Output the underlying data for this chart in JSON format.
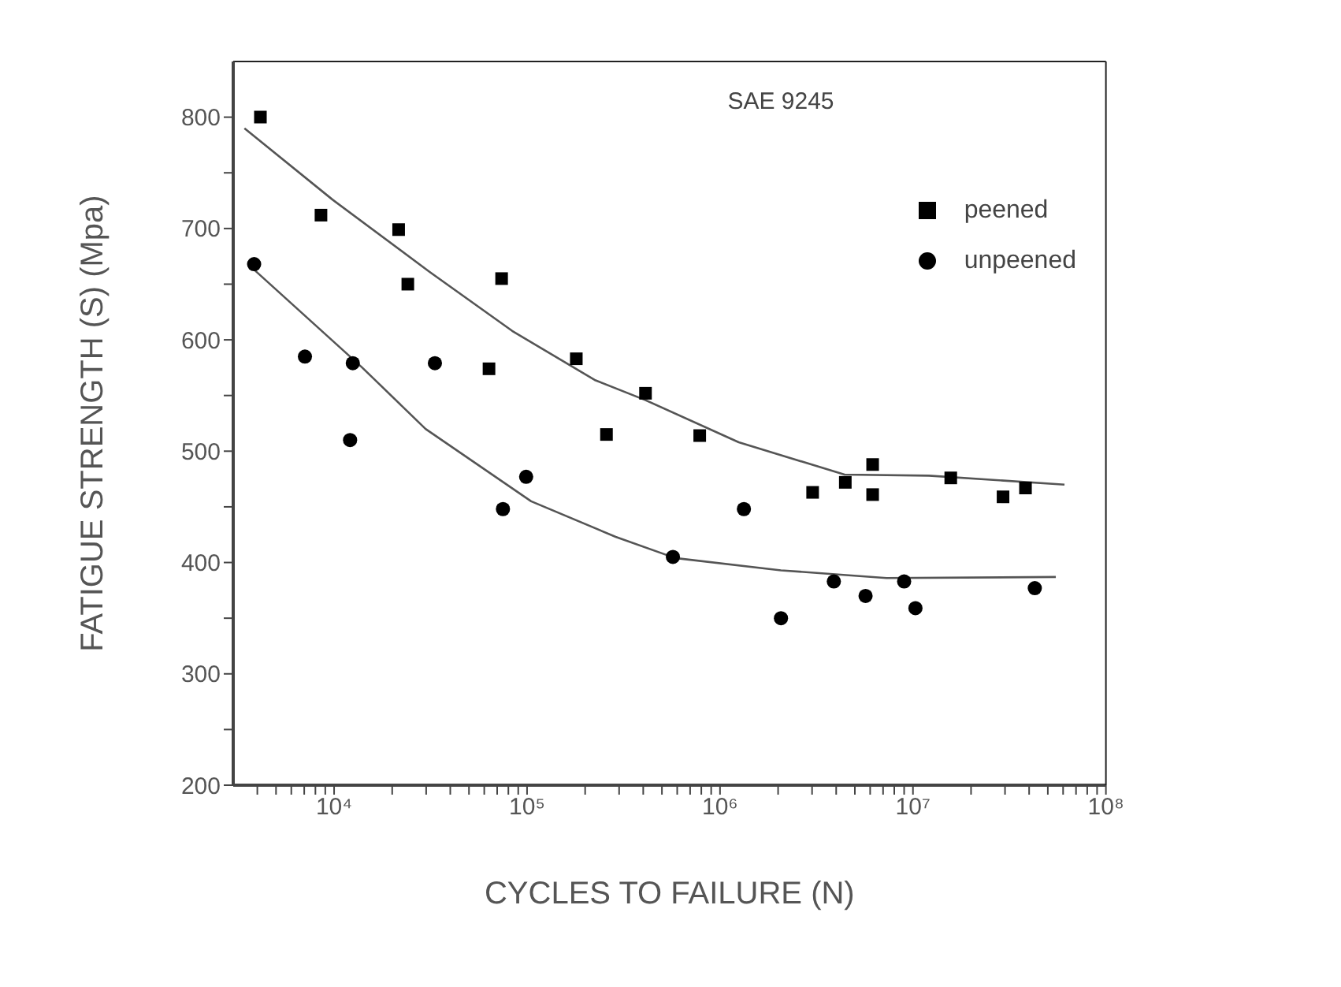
{
  "chart_data": {
    "type": "scatter",
    "title": "SAE 9245",
    "xlabel": "CYCLES TO FAILURE (N)",
    "ylabel": "FATIGUE STRENGTH (S) (Mpa)",
    "log": "x",
    "xlim": [
      3000,
      100000000
    ],
    "xticks": [
      {
        "value": 4000,
        "label": null
      },
      {
        "value": 5000,
        "label": null
      },
      {
        "value": 6000,
        "label": null
      },
      {
        "value": 7000,
        "label": null
      },
      {
        "value": 8000,
        "label": null
      },
      {
        "value": 9000,
        "label": null
      },
      {
        "value": 10000,
        "label": "10⁴"
      },
      {
        "value": 20000,
        "label": null
      },
      {
        "value": 30000,
        "label": null
      },
      {
        "value": 40000,
        "label": null
      },
      {
        "value": 50000,
        "label": null
      },
      {
        "value": 60000,
        "label": null
      },
      {
        "value": 70000,
        "label": null
      },
      {
        "value": 80000,
        "label": null
      },
      {
        "value": 90000,
        "label": null
      },
      {
        "value": 100000,
        "label": "10⁵"
      },
      {
        "value": 200000,
        "label": null
      },
      {
        "value": 300000,
        "label": null
      },
      {
        "value": 400000,
        "label": null
      },
      {
        "value": 500000,
        "label": null
      },
      {
        "value": 600000,
        "label": null
      },
      {
        "value": 700000,
        "label": null
      },
      {
        "value": 800000,
        "label": null
      },
      {
        "value": 900000,
        "label": null
      },
      {
        "value": 1000000,
        "label": "10⁶"
      },
      {
        "value": 2000000,
        "label": null
      },
      {
        "value": 3000000,
        "label": null
      },
      {
        "value": 4000000,
        "label": null
      },
      {
        "value": 5000000,
        "label": null
      },
      {
        "value": 6000000,
        "label": null
      },
      {
        "value": 7000000,
        "label": null
      },
      {
        "value": 8000000,
        "label": null
      },
      {
        "value": 9000000,
        "label": null
      },
      {
        "value": 10000000,
        "label": "10⁷"
      },
      {
        "value": 20000000,
        "label": null
      },
      {
        "value": 30000000,
        "label": null
      },
      {
        "value": 40000000,
        "label": null
      },
      {
        "value": 50000000,
        "label": null
      },
      {
        "value": 60000000,
        "label": null
      },
      {
        "value": 70000000,
        "label": null
      },
      {
        "value": 80000000,
        "label": null
      },
      {
        "value": 90000000,
        "label": null
      },
      {
        "value": 100000000,
        "label": "10⁸"
      }
    ],
    "ylim": [
      200,
      850
    ],
    "yticks": [
      200,
      {
        "value": 250,
        "label": null
      },
      300,
      {
        "value": 350,
        "label": null
      },
      400,
      {
        "value": 450,
        "label": null
      },
      500,
      {
        "value": 550,
        "label": null
      },
      600,
      {
        "value": 650,
        "label": null
      },
      700,
      {
        "value": 750,
        "label": null
      },
      800
    ],
    "grid": false,
    "legend": "top right",
    "series": [
      {
        "name": "peened",
        "marker": "square",
        "color": "#000000",
        "x": [
          4150,
          8550,
          21600,
          24100,
          73800,
          63500,
          180000,
          258000,
          411000,
          785000,
          3020000,
          4460000,
          6180000,
          6180000,
          15700000,
          29300000,
          38300000
        ],
        "values": [
          800,
          712,
          699,
          650,
          655,
          574,
          583,
          515,
          552,
          514,
          463,
          472,
          488,
          461,
          476,
          459,
          467
        ]
      },
      {
        "name": "unpeened",
        "marker": "circle",
        "color": "#000000",
        "x": [
          3850,
          7060,
          12500,
          12100,
          33300,
          75000,
          98900,
          1330000,
          570000,
          2070000,
          3890000,
          5680000,
          9000000,
          10300000,
          42800000
        ],
        "values": [
          668,
          585,
          579,
          510,
          579,
          448,
          477,
          448,
          405,
          350,
          383,
          370,
          383,
          359,
          377
        ]
      },
      {
        "type": "line",
        "marker": "none",
        "color": "#555555",
        "x": [
          3430,
          9800,
          31300,
          83800,
          224000,
          409000,
          1250000,
          4420000,
          12100000,
          61000000
        ],
        "values": [
          790,
          726,
          661,
          608,
          564,
          546,
          508,
          479,
          478,
          470
        ]
      },
      {
        "type": "line",
        "marker": "none",
        "color": "#555555",
        "x": [
          3850,
          14000,
          29800,
          105000,
          288000,
          586000,
          2070000,
          7300000,
          55000000
        ],
        "values": [
          663,
          575,
          520,
          455,
          423,
          404,
          393,
          386,
          387
        ]
      }
    ]
  }
}
